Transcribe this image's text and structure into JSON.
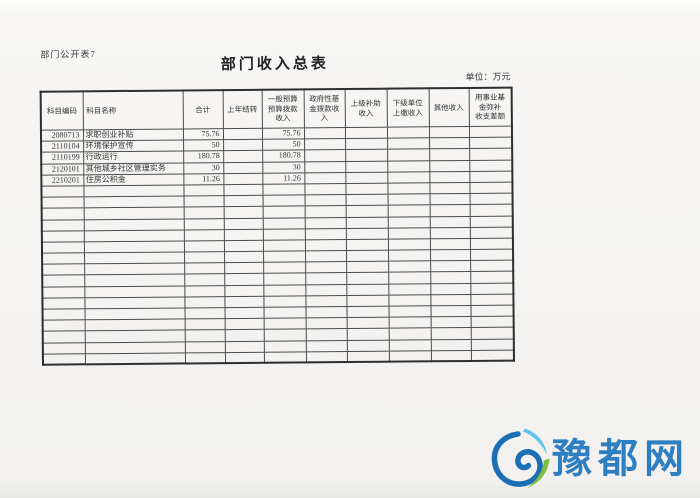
{
  "document": {
    "doc_label": "部门公开表7",
    "title": "部门收入总表",
    "unit_note": "单位：万元"
  },
  "table": {
    "columns": [
      {
        "label": "科目编码"
      },
      {
        "label": "科目名称"
      },
      {
        "label": "合计"
      },
      {
        "label": "上年结转"
      },
      {
        "label": "一般预算\n预算拨款\n收入"
      },
      {
        "label": "政府性基\n金拨款收\n入"
      },
      {
        "label": "上级补助\n收入"
      },
      {
        "label": "下级单位\n上缴收入"
      },
      {
        "label": "其他收入"
      },
      {
        "label": "用事业基\n金弥补\n收支差额"
      }
    ],
    "rows": [
      [
        "2080713",
        "求职创业补贴",
        "75.76",
        "",
        "75.76",
        "",
        "",
        "",
        "",
        ""
      ],
      [
        "2110104",
        "环境保护宣传",
        "50",
        "",
        "50",
        "",
        "",
        "",
        "",
        ""
      ],
      [
        "2110199",
        "行政运行",
        "180.78",
        "",
        "180.78",
        "",
        "",
        "",
        "",
        ""
      ],
      [
        "2120101",
        "其他城乡社区管理实务",
        "30",
        "",
        "30",
        "",
        "",
        "",
        "",
        ""
      ],
      [
        "2210201",
        "住房公积金",
        "11.26",
        "",
        "11.26",
        "",
        "",
        "",
        "",
        ""
      ]
    ],
    "empty_rows": 16
  },
  "watermark": {
    "site_name": "豫都网",
    "text_color": "#2e7fc1",
    "swirl_blue": "#1d6fb5",
    "swirl_cyan": "#62c4e8",
    "swirl_green": "#7fbf3f"
  }
}
